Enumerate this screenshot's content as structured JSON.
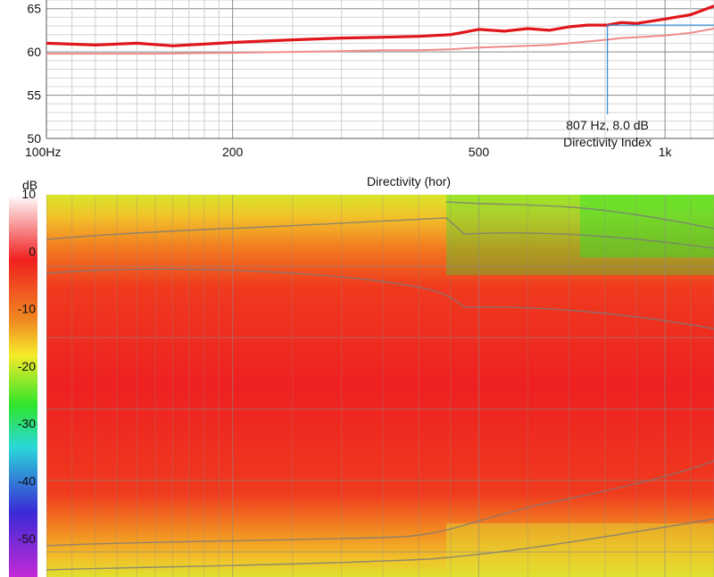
{
  "chart_data": [
    {
      "type": "line",
      "title": "Directivity Index",
      "xlabel": "",
      "ylabel": "",
      "x_scale": "log",
      "xlim": [
        100,
        1200
      ],
      "ylim": [
        50,
        66
      ],
      "grid": true,
      "x_ticks": [
        {
          "value": 100,
          "label": "100Hz"
        },
        {
          "value": 200,
          "label": "200"
        },
        {
          "value": 500,
          "label": "500"
        },
        {
          "value": 1000,
          "label": "1k"
        }
      ],
      "y_ticks": [
        {
          "value": 50,
          "label": "50"
        },
        {
          "value": 55,
          "label": "55"
        },
        {
          "value": 60,
          "label": "60"
        },
        {
          "value": 65,
          "label": "65"
        }
      ],
      "series": [
        {
          "color": "#e0161b",
          "x": [
            100,
            120,
            140,
            160,
            180,
            200,
            250,
            300,
            350,
            400,
            450,
            500,
            550,
            600,
            650,
            700,
            750,
            807,
            850,
            900,
            1000,
            1100,
            1200
          ],
          "y": [
            61.0,
            60.8,
            61.0,
            60.7,
            60.9,
            61.1,
            61.4,
            61.6,
            61.7,
            61.8,
            62.0,
            62.6,
            62.4,
            62.7,
            62.5,
            62.9,
            63.1,
            63.1,
            63.4,
            63.3,
            63.8,
            64.3,
            65.3
          ]
        },
        {
          "color": "#f08a8a",
          "x": [
            100,
            150,
            200,
            250,
            300,
            350,
            400,
            450,
            500,
            550,
            600,
            650,
            700,
            750,
            800,
            850,
            900,
            1000,
            1100,
            1200
          ],
          "y": [
            59.8,
            59.8,
            59.9,
            60.0,
            60.1,
            60.2,
            60.2,
            60.3,
            60.5,
            60.6,
            60.7,
            60.8,
            61.0,
            61.2,
            61.4,
            61.6,
            61.7,
            61.9,
            62.2,
            62.7
          ]
        }
      ],
      "cursor": {
        "x": 807,
        "y": 63.1,
        "label": "807 Hz, 8.0 dB",
        "name": "Directivity Index"
      }
    },
    {
      "type": "heatmap",
      "title": "Directivity (hor)",
      "colorbar_label": "dB",
      "colorbar_ticks": [
        "10",
        "0",
        "-10",
        "-20",
        "-30",
        "-40",
        "-50"
      ],
      "color_scale": [
        "#ffffff",
        "#f02020",
        "#f6eb2a",
        "#2fe52a",
        "#2ad8d8",
        "#3a2ad6",
        "#c32ad6"
      ]
    }
  ]
}
